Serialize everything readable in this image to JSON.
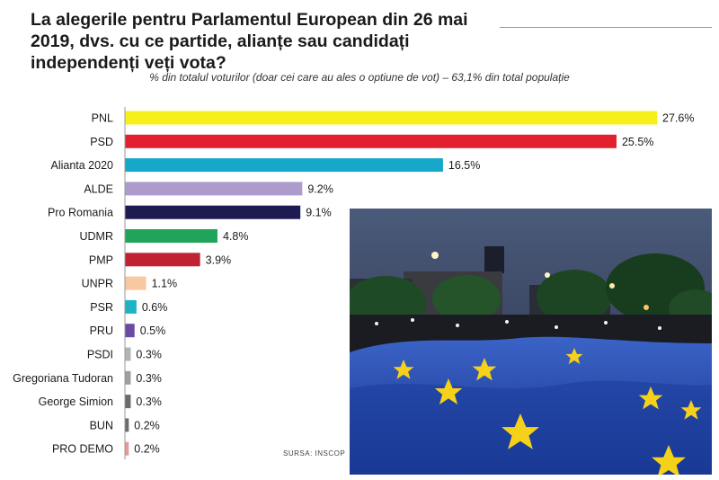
{
  "title": "La alegerile pentru Parlamentul European din 26 mai 2019, dvs. cu ce partide, alianțe sau candidați independenți veți vota?",
  "subtitle": "% din totalul voturilor (doar cei care au ales o optiune de vot) – 63,1% din total populație",
  "source": "SURSA: INSCOP",
  "chart_data": {
    "type": "bar",
    "orientation": "horizontal",
    "categories": [
      "PNL",
      "PSD",
      "Alianta 2020",
      "ALDE",
      "Pro Romania",
      "UDMR",
      "PMP",
      "UNPR",
      "PSR",
      "PRU",
      "PSDI",
      "Gregoriana Tudoran",
      "George Simion",
      "BUN",
      "PRO DEMO"
    ],
    "values": [
      27.6,
      25.5,
      16.5,
      9.2,
      9.1,
      4.8,
      3.9,
      1.1,
      0.6,
      0.5,
      0.3,
      0.3,
      0.3,
      0.2,
      0.2
    ],
    "value_labels": [
      "27.6%",
      "25.5%",
      "16.5%",
      "9.2%",
      "9.1%",
      "4.8%",
      "3.9%",
      "1.1%",
      "0.6%",
      "0.5%",
      "0.3%",
      "0.3%",
      "0.3%",
      "0.2%",
      "0.2%"
    ],
    "colors": [
      "#f7ef1a",
      "#e3202e",
      "#16a7c9",
      "#ad9bcb",
      "#1e1a52",
      "#20a45a",
      "#bf2233",
      "#f8c9a1",
      "#1eb3c4",
      "#6a4aa3",
      "#b3b3b3",
      "#9e9e9e",
      "#6b6b6b",
      "#6b6b6b",
      "#e79a9a"
    ],
    "xlim": [
      0,
      27.6
    ],
    "grid": false,
    "legend": "none"
  },
  "photo": {
    "icon": "eu-flag-protest-photo",
    "colors": {
      "sky": "#2f3a55",
      "flag": "#1f49a8",
      "star": "#f6d11a",
      "crowd": "#1a1c22",
      "trees": "#1f4a26"
    }
  }
}
